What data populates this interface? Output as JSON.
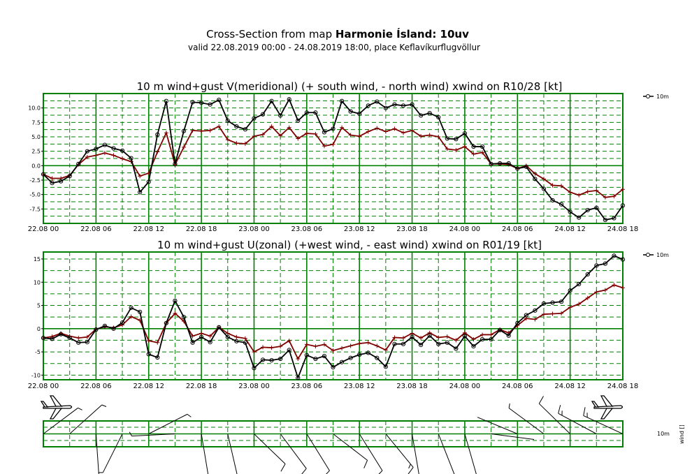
{
  "header": {
    "title_prefix": "Cross-Section from map ",
    "title_bold": "Harmonie Ísland: 10uv",
    "subtitle": "valid 22.08.2019 00:00 - 24.08.2019 18:00, place Keflavíkurflugvöllur"
  },
  "colors": {
    "grid": "#008000",
    "black_series": "#000000",
    "red_series": "#800000",
    "barb": "#000000"
  },
  "icons": {
    "left": "airplane-icon",
    "right": "airplane-icon"
  },
  "chart_data": [
    {
      "type": "line",
      "title": "10 m wind+gust V(meridional) (+ south wind, - north wind) xwind on R10/28 [kt]",
      "x_tick_labels": [
        "22.08 00",
        "22.08 06",
        "22.08 12",
        "22.08 18",
        "23.08 00",
        "23.08 06",
        "23.08 12",
        "23.08 18",
        "24.08 00",
        "24.08 06",
        "24.08 12",
        "24.08 18"
      ],
      "x_hours": [
        0,
        1,
        2,
        3,
        4,
        5,
        6,
        7,
        8,
        9,
        10,
        11,
        12,
        13,
        14,
        15,
        16,
        17,
        18,
        19,
        20,
        21,
        22,
        23,
        24,
        25,
        26,
        27,
        28,
        29,
        30,
        31,
        32,
        33,
        34,
        35,
        36,
        37,
        38,
        39,
        40,
        41,
        42,
        43,
        44,
        45,
        46,
        47,
        48,
        49,
        50,
        51,
        52,
        53,
        54,
        55,
        56,
        57,
        58,
        59,
        60,
        61,
        62,
        63,
        64,
        65,
        66
      ],
      "ylim": [
        -10,
        12.5
      ],
      "y_ticks": [
        -7.5,
        -5,
        -2.5,
        0,
        2.5,
        5,
        7.5,
        10
      ],
      "y_tick_labels": [
        "-7.5",
        "-5.0",
        "-2.5",
        "0.0",
        "2.5",
        "5.0",
        "7.5",
        "10.0"
      ],
      "legend": "10m",
      "series": [
        {
          "name": "10m",
          "marker": "circle",
          "values": [
            -1.5,
            -3.0,
            -2.7,
            -1.8,
            0.3,
            2.5,
            2.9,
            3.6,
            3.0,
            2.6,
            1.3,
            -4.6,
            -2.8,
            5.4,
            11.2,
            0.3,
            6.0,
            11.0,
            10.9,
            10.6,
            11.4,
            7.8,
            6.8,
            6.3,
            8.2,
            8.9,
            11.2,
            8.7,
            11.5,
            7.8,
            9.2,
            9.2,
            5.8,
            6.4,
            11.2,
            9.4,
            9.0,
            10.4,
            11.1,
            10.0,
            10.6,
            10.4,
            10.6,
            8.7,
            9.1,
            8.4,
            4.7,
            4.6,
            5.6,
            3.3,
            3.3,
            0.3,
            0.4,
            0.4,
            -0.5,
            -0.2,
            -2.3,
            -4.0,
            -6.0,
            -6.7,
            -8.0,
            -9.0,
            -7.7,
            -7.3,
            -9.4,
            -9.1,
            -6.9
          ]
        },
        {
          "name": "",
          "marker": "plus",
          "values": [
            -1.5,
            -2.2,
            -2.2,
            -1.7,
            0.2,
            1.5,
            1.8,
            2.2,
            1.8,
            1.2,
            0.7,
            -1.8,
            -1.3,
            2.4,
            5.7,
            0.2,
            3.2,
            6.1,
            6.0,
            6.1,
            6.8,
            4.5,
            3.9,
            3.8,
            5.1,
            5.4,
            6.8,
            5.2,
            6.6,
            4.7,
            5.6,
            5.5,
            3.4,
            3.7,
            6.6,
            5.3,
            5.1,
            5.9,
            6.5,
            5.9,
            6.4,
            5.7,
            6.1,
            5.1,
            5.3,
            5.0,
            2.9,
            2.7,
            3.3,
            2.0,
            2.3,
            0.3,
            0.3,
            0.2,
            -0.5,
            0.0,
            -1.4,
            -2.3,
            -3.4,
            -3.5,
            -4.6,
            -5.1,
            -4.5,
            -4.3,
            -5.5,
            -5.3,
            -4.1
          ]
        }
      ]
    },
    {
      "type": "line",
      "title": "10 m wind+gust U(zonal) (+west wind, - east wind) xwind on R01/19 [kt]",
      "x_tick_labels": [
        "22.08 00",
        "22.08 06",
        "22.08 12",
        "22.08 18",
        "23.08 00",
        "23.08 06",
        "23.08 12",
        "23.08 18",
        "24.08 00",
        "24.08 06",
        "24.08 12",
        "24.08 18"
      ],
      "ylim": [
        -11,
        16.5
      ],
      "y_ticks": [
        -10,
        -5,
        0,
        5,
        10,
        15
      ],
      "y_tick_labels": [
        "-10",
        "-5",
        "0",
        "5",
        "10",
        "15"
      ],
      "legend": "10m",
      "series": [
        {
          "name": "10m",
          "marker": "circle",
          "values": [
            -2.0,
            -2.2,
            -1.2,
            -2.0,
            -3.0,
            -2.9,
            -0.2,
            0.6,
            0.0,
            1.3,
            4.5,
            3.6,
            -5.5,
            -6.2,
            1.2,
            6.0,
            2.5,
            -3.0,
            -1.8,
            -2.9,
            0.3,
            -1.8,
            -2.7,
            -3.0,
            -8.5,
            -6.7,
            -6.8,
            -6.5,
            -4.6,
            -10.6,
            -5.7,
            -6.5,
            -5.9,
            -8.3,
            -7.2,
            -6.3,
            -5.6,
            -5.2,
            -6.3,
            -8.2,
            -3.3,
            -3.3,
            -1.8,
            -3.5,
            -1.5,
            -3.3,
            -3.0,
            -4.3,
            -1.6,
            -3.8,
            -2.3,
            -2.3,
            -0.3,
            -1.5,
            1.2,
            2.9,
            3.9,
            5.4,
            5.6,
            5.8,
            8.2,
            9.6,
            11.7,
            13.6,
            14.0,
            15.7,
            14.9
          ]
        },
        {
          "name": "",
          "marker": "plus",
          "values": [
            -2.0,
            -1.7,
            -1.0,
            -1.6,
            -2.0,
            -1.8,
            -0.1,
            0.4,
            0.2,
            0.8,
            2.6,
            1.8,
            -2.6,
            -3.0,
            1.2,
            3.3,
            1.6,
            -1.6,
            -1.0,
            -1.6,
            0.3,
            -1.0,
            -1.8,
            -2.1,
            -5.0,
            -4.0,
            -4.1,
            -3.8,
            -2.6,
            -6.5,
            -3.4,
            -3.8,
            -3.4,
            -4.7,
            -4.2,
            -3.7,
            -3.2,
            -3.0,
            -3.7,
            -4.6,
            -1.9,
            -2.0,
            -1.0,
            -2.0,
            -0.9,
            -1.9,
            -1.7,
            -2.5,
            -0.9,
            -2.3,
            -1.3,
            -1.3,
            -0.2,
            -0.9,
            0.7,
            2.2,
            2.0,
            3.1,
            3.2,
            3.3,
            4.6,
            5.3,
            6.6,
            7.9,
            8.3,
            9.4,
            8.8
          ]
        }
      ]
    },
    {
      "type": "wind_barbs",
      "legend": "10m",
      "ylabel": "wind []"
    }
  ]
}
